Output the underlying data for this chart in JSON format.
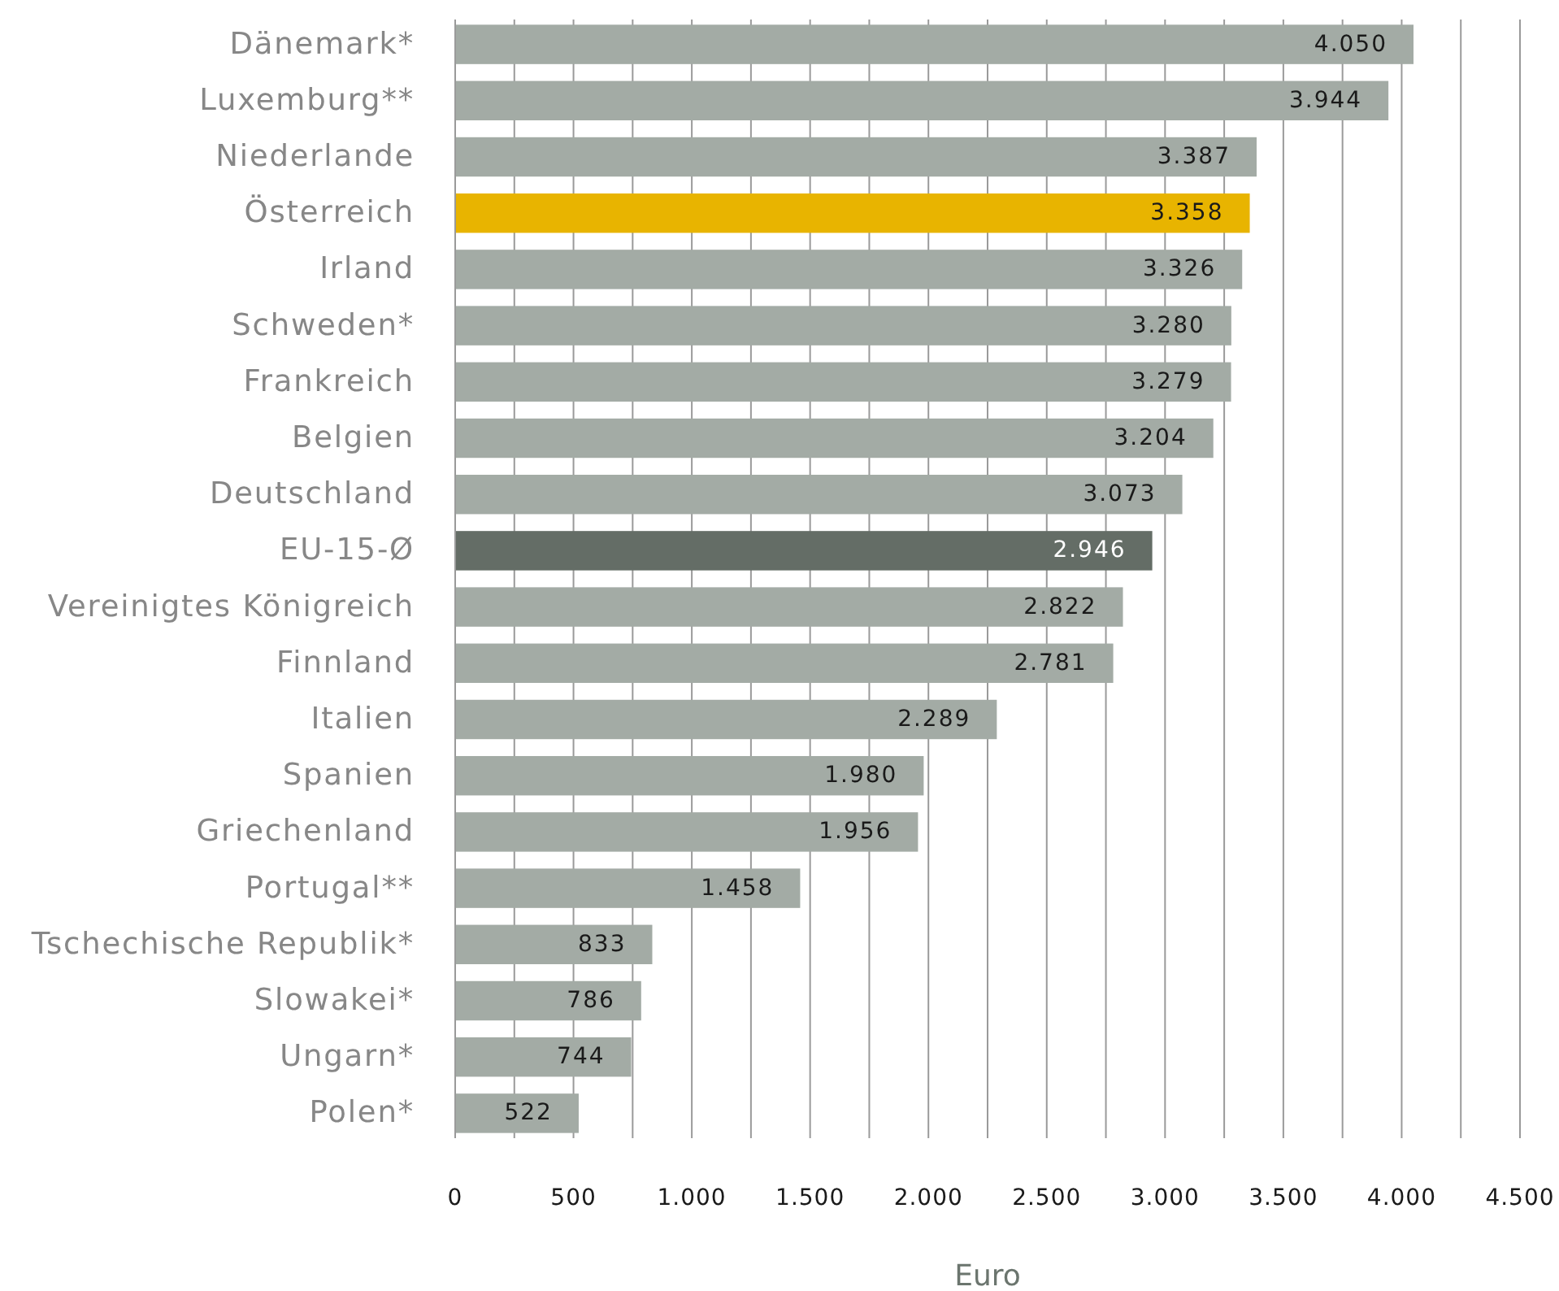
{
  "chart_data": {
    "type": "bar",
    "orientation": "horizontal",
    "categories": [
      "Dänemark*",
      "Luxemburg**",
      "Niederlande",
      "Österreich",
      "Irland",
      "Schweden*",
      "Frankreich",
      "Belgien",
      "Deutschland",
      "EU-15-Ø",
      "Vereinigtes Königreich",
      "Finnland",
      "Italien",
      "Spanien",
      "Griechenland",
      "Portugal**",
      "Tschechische Republik*",
      "Slowakei*",
      "Ungarn*",
      "Polen*"
    ],
    "values": [
      4050,
      3944,
      3387,
      3358,
      3326,
      3280,
      3279,
      3204,
      3073,
      2946,
      2822,
      2781,
      2289,
      1980,
      1956,
      1458,
      833,
      786,
      744,
      522
    ],
    "value_labels": [
      "4.050",
      "3.944",
      "3.387",
      "3.358",
      "3.326",
      "3.280",
      "3.279",
      "3.204",
      "3.073",
      "2.946",
      "2.822",
      "2.781",
      "2.289",
      "1.980",
      "1.956",
      "1.458",
      "833",
      "786",
      "744",
      "522"
    ],
    "colors": [
      "#a3aba5",
      "#a3aba5",
      "#a3aba5",
      "#e8b400",
      "#a3aba5",
      "#a3aba5",
      "#a3aba5",
      "#a3aba5",
      "#a3aba5",
      "#646d66",
      "#a3aba5",
      "#a3aba5",
      "#a3aba5",
      "#a3aba5",
      "#a3aba5",
      "#a3aba5",
      "#a3aba5",
      "#a3aba5",
      "#a3aba5",
      "#a3aba5"
    ],
    "xlabel": "Euro",
    "xlim": [
      0,
      4500
    ],
    "xticks": [
      0,
      {
        "value": 250,
        "label": null
      },
      500,
      {
        "value": 750,
        "label": null
      },
      {
        "value": 1000,
        "label": "1.000"
      },
      {
        "value": 1250,
        "label": null
      },
      {
        "value": 1500,
        "label": "1.500"
      },
      {
        "value": 1750,
        "label": null
      },
      {
        "value": 2000,
        "label": "2.000"
      },
      {
        "value": 2250,
        "label": null
      },
      {
        "value": 2500,
        "label": "2.500"
      },
      {
        "value": 2750,
        "label": null
      },
      {
        "value": 3000,
        "label": "3.000"
      },
      {
        "value": 3250,
        "label": null
      },
      {
        "value": 3500,
        "label": "3.500"
      },
      {
        "value": 3750,
        "label": null
      },
      {
        "value": 4000,
        "label": "4.000"
      },
      {
        "value": 4250,
        "label": null
      },
      {
        "value": 4500,
        "label": "4.500"
      }
    ],
    "grid": "x"
  }
}
